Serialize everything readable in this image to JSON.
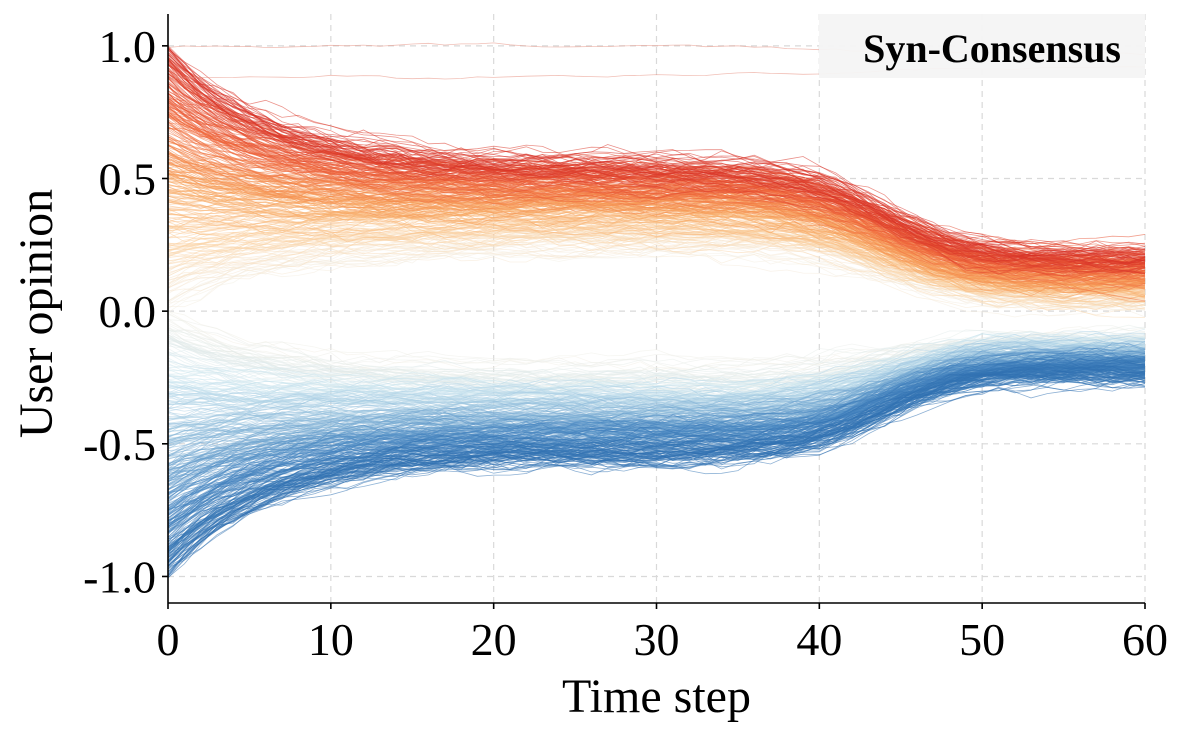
{
  "chart_data": {
    "type": "line",
    "title": "",
    "legend_label": "Syn-Consensus",
    "legend_placement": "top-right",
    "xlabel": "Time step",
    "ylabel": "User opinion",
    "xlim": [
      0,
      60
    ],
    "ylim": [
      -1.1,
      1.12
    ],
    "xticks": [
      0,
      10,
      20,
      30,
      40,
      50,
      60
    ],
    "xtick_labels": [
      "0",
      "10",
      "20",
      "30",
      "40",
      "50",
      "60"
    ],
    "yticks": [
      1.0,
      0.5,
      0.0,
      -0.5,
      -1.0
    ],
    "ytick_labels": [
      "1.0",
      "0.5",
      "0.0",
      "-0.5",
      "-1.0"
    ],
    "grid": true,
    "colormap": [
      "#2f6fb0",
      "#4a88c2",
      "#8fbcdb",
      "#cde6f0",
      "#f3efe6",
      "#fbd3a4",
      "#f7a35c",
      "#f0683c",
      "#d73027"
    ],
    "series_summary": [
      {
        "name": "opinion trajectories (positive cluster)",
        "start_range": [
          0.0,
          1.0
        ],
        "plateau_t20_35": [
          0.25,
          0.55
        ],
        "final_range_t60": [
          0.05,
          0.22
        ]
      },
      {
        "name": "opinion trajectories (negative cluster)",
        "start_range": [
          -1.0,
          0.0
        ],
        "plateau_t20_35": [
          -0.5,
          -0.2
        ],
        "final_range_t60": [
          -0.25,
          -0.1
        ]
      },
      {
        "name": "outlier trajectories near 1.0",
        "values_over_time": [
          0.99,
          1.0,
          1.0,
          0.98,
          0.97
        ]
      },
      {
        "name": "outlier trajectory near 0.9",
        "values_over_time": [
          0.88,
          0.88,
          0.89,
          0.91,
          0.92
        ]
      }
    ],
    "trajectory_count_drawn": 700,
    "time_steps": 60
  }
}
